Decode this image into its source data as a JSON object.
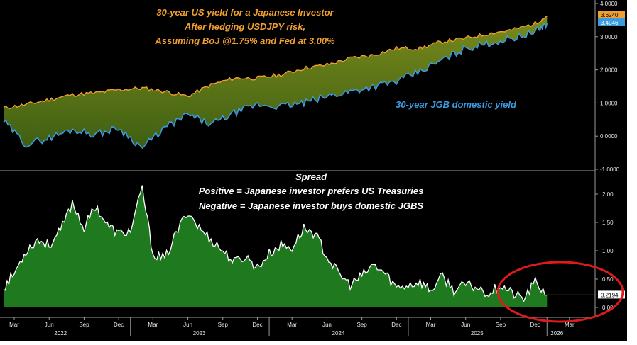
{
  "colors": {
    "background": "#000000",
    "us_yield": "#f0a030",
    "jgb": "#3a9be0",
    "fill_top": "#7a8a1c",
    "spread_fill": "#1f7a1f",
    "spread_line": "#ffffff",
    "annotation_title": "#f0a030",
    "annotation_jgb": "#3a9be0",
    "circle": "#e01a1a"
  },
  "chart_data": [
    {
      "type": "area",
      "title_lines": [
        "30-year US yield for a Japanese Investor",
        "After hedging USDJPY risk,",
        "Assuming BoJ @1.75% and Fed at 3.00%"
      ],
      "annotation": "30-year JGB domestic yield",
      "ylim": [
        -1.0,
        4.0
      ],
      "yticks": [
        "-1.0000",
        "0.0000",
        "1.0000",
        "2.0000",
        "3.0000",
        "4.0000"
      ],
      "series": [
        {
          "name": "30-year US yield for a Japanese Investor",
          "last_value": "3.6240",
          "x": [
            "2022-02",
            "2022-04",
            "2022-06",
            "2022-08",
            "2022-10",
            "2022-12",
            "2023-02",
            "2023-04",
            "2023-06",
            "2023-08",
            "2023-10",
            "2023-12",
            "2024-02",
            "2024-04",
            "2024-06",
            "2024-08",
            "2024-10",
            "2024-12",
            "2025-02",
            "2025-04",
            "2025-06",
            "2025-08",
            "2025-10",
            "2025-12",
            "2026-01"
          ],
          "values": [
            0.85,
            0.95,
            1.1,
            1.25,
            1.3,
            1.4,
            1.45,
            1.35,
            1.2,
            1.55,
            1.75,
            1.75,
            1.85,
            2.05,
            2.15,
            2.35,
            2.45,
            2.65,
            2.65,
            2.85,
            2.95,
            3.1,
            3.2,
            3.4,
            3.62
          ]
        },
        {
          "name": "30-year JGB domestic yield",
          "last_value": "3.4046",
          "x": [
            "2022-02",
            "2022-04",
            "2022-06",
            "2022-08",
            "2022-10",
            "2022-12",
            "2023-02",
            "2023-04",
            "2023-06",
            "2023-08",
            "2023-10",
            "2023-12",
            "2024-02",
            "2024-04",
            "2024-06",
            "2024-08",
            "2024-10",
            "2024-12",
            "2025-02",
            "2025-04",
            "2025-06",
            "2025-08",
            "2025-10",
            "2025-12",
            "2026-01"
          ],
          "values": [
            0.45,
            -0.25,
            -0.05,
            0.2,
            0.05,
            0.25,
            -0.35,
            0.25,
            0.65,
            0.35,
            0.7,
            0.95,
            0.9,
            1.0,
            1.2,
            1.35,
            1.5,
            1.65,
            1.95,
            2.3,
            2.65,
            2.8,
            2.95,
            3.15,
            3.4
          ]
        }
      ]
    },
    {
      "type": "area",
      "title_lines": [
        "Spread",
        "Positive = Japanese investor prefers US Treasuries",
        "Negative = Japanese investor buys domestic JGBS"
      ],
      "ylim": [
        -0.05,
        2.2
      ],
      "yticks": [
        "0.00",
        "0.50",
        "1.00",
        "1.50",
        "2.00"
      ],
      "series": [
        {
          "name": "Spread",
          "last_value": "0.2194",
          "x": [
            "2022-02",
            "2022-03",
            "2022-04",
            "2022-05",
            "2022-06",
            "2022-07",
            "2022-08",
            "2022-09",
            "2022-10",
            "2022-11",
            "2022-12",
            "2023-01",
            "2023-02",
            "2023-03",
            "2023-04",
            "2023-05",
            "2023-06",
            "2023-07",
            "2023-08",
            "2023-09",
            "2023-10",
            "2023-11",
            "2023-12",
            "2024-01",
            "2024-02",
            "2024-03",
            "2024-04",
            "2024-05",
            "2024-06",
            "2024-07",
            "2024-08",
            "2024-09",
            "2024-10",
            "2024-11",
            "2024-12",
            "2025-01",
            "2025-02",
            "2025-03",
            "2025-04",
            "2025-05",
            "2025-06",
            "2025-07",
            "2025-08",
            "2025-09",
            "2025-10",
            "2025-11",
            "2025-12",
            "2026-01"
          ],
          "values": [
            0.35,
            0.6,
            1.0,
            1.2,
            1.1,
            1.35,
            1.85,
            1.4,
            1.8,
            1.45,
            1.3,
            1.35,
            2.1,
            0.95,
            0.85,
            1.3,
            1.7,
            1.4,
            1.2,
            1.0,
            0.8,
            0.9,
            0.7,
            0.95,
            1.1,
            1.05,
            1.4,
            1.3,
            0.9,
            0.6,
            0.4,
            0.55,
            0.75,
            0.6,
            0.35,
            0.4,
            0.45,
            0.3,
            0.55,
            0.3,
            0.4,
            0.35,
            0.25,
            0.4,
            0.25,
            0.15,
            0.45,
            0.22
          ]
        }
      ]
    }
  ],
  "x_axis": {
    "months": [
      "Mar",
      "Jun",
      "Sep",
      "Dec",
      "Mar",
      "Jun",
      "Sep",
      "Dec",
      "Mar",
      "Jun",
      "Sep",
      "Dec",
      "Mar",
      "Jun",
      "Sep",
      "Dec",
      "Mar"
    ],
    "years": [
      "2022",
      "2023",
      "2024",
      "2025",
      "2026"
    ]
  }
}
